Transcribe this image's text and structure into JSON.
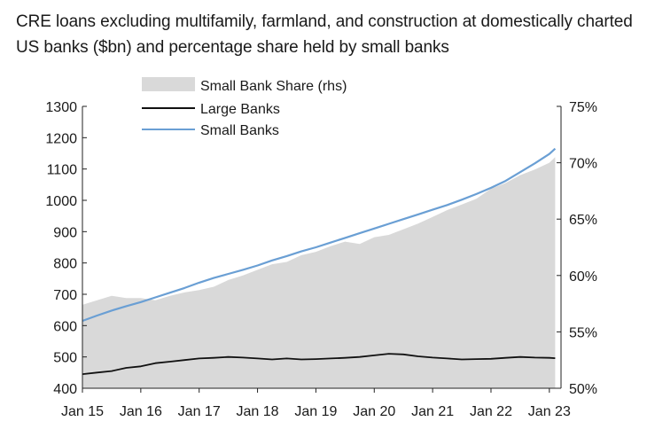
{
  "chart_data": {
    "type": "line",
    "title": "CRE loans excluding multifamily, farmland, and construction at domestically charted US banks ($bn) and percentage share held by small banks",
    "x_tick_labels": [
      "Jan 15",
      "Jan 16",
      "Jan 17",
      "Jan 18",
      "Jan 19",
      "Jan 20",
      "Jan 21",
      "Jan 22",
      "Jan 23"
    ],
    "y_left_ticks": [
      "400",
      "500",
      "600",
      "700",
      "800",
      "900",
      "1000",
      "1100",
      "1200",
      "1300"
    ],
    "y_right_ticks": [
      "50%",
      "55%",
      "60%",
      "65%",
      "70%",
      "75%"
    ],
    "ylim_left": [
      400,
      1300
    ],
    "ylim_right": [
      50,
      75
    ],
    "xlim": [
      2015,
      2023.2
    ],
    "legend_position": "top-left",
    "series": [
      {
        "name": "Small Bank Share (rhs)",
        "kind": "area",
        "axis": "right",
        "color": "#d9d9d9",
        "x": [
          2015.0,
          2015.25,
          2015.5,
          2015.75,
          2016.0,
          2016.25,
          2016.5,
          2016.75,
          2017.0,
          2017.25,
          2017.5,
          2017.75,
          2018.0,
          2018.25,
          2018.5,
          2018.75,
          2019.0,
          2019.25,
          2019.5,
          2019.75,
          2020.0,
          2020.25,
          2020.5,
          2020.75,
          2021.0,
          2021.25,
          2021.5,
          2021.75,
          2022.0,
          2022.25,
          2022.5,
          2022.75,
          2023.0,
          2023.1
        ],
        "values": [
          57.4,
          57.8,
          58.2,
          58.0,
          58.0,
          57.8,
          58.2,
          58.5,
          58.7,
          59.0,
          59.6,
          60.0,
          60.5,
          61.0,
          61.2,
          61.8,
          62.1,
          62.6,
          63.0,
          62.8,
          63.4,
          63.6,
          64.1,
          64.6,
          65.2,
          65.8,
          66.3,
          66.8,
          67.7,
          68.2,
          68.9,
          69.4,
          70.0,
          70.5
        ]
      },
      {
        "name": "Large Banks",
        "kind": "line",
        "axis": "left",
        "color": "#111111",
        "x": [
          2015.0,
          2015.25,
          2015.5,
          2015.75,
          2016.0,
          2016.25,
          2016.5,
          2016.75,
          2017.0,
          2017.25,
          2017.5,
          2017.75,
          2018.0,
          2018.25,
          2018.5,
          2018.75,
          2019.0,
          2019.25,
          2019.5,
          2019.75,
          2020.0,
          2020.25,
          2020.5,
          2020.75,
          2021.0,
          2021.25,
          2021.5,
          2021.75,
          2022.0,
          2022.25,
          2022.5,
          2022.75,
          2023.0,
          2023.1
        ],
        "values": [
          445,
          450,
          455,
          465,
          470,
          480,
          485,
          490,
          495,
          497,
          500,
          498,
          495,
          492,
          495,
          492,
          493,
          495,
          497,
          500,
          505,
          510,
          508,
          502,
          498,
          495,
          492,
          493,
          494,
          497,
          500,
          498,
          497,
          496
        ]
      },
      {
        "name": "Small Banks",
        "kind": "line",
        "axis": "left",
        "color": "#6a9fd4",
        "x": [
          2015.0,
          2015.25,
          2015.5,
          2015.75,
          2016.0,
          2016.25,
          2016.5,
          2016.75,
          2017.0,
          2017.25,
          2017.5,
          2017.75,
          2018.0,
          2018.25,
          2018.5,
          2018.75,
          2019.0,
          2019.25,
          2019.5,
          2019.75,
          2020.0,
          2020.25,
          2020.5,
          2020.75,
          2021.0,
          2021.25,
          2021.5,
          2021.75,
          2022.0,
          2022.25,
          2022.5,
          2022.75,
          2023.0,
          2023.1
        ],
        "values": [
          615,
          632,
          648,
          662,
          675,
          690,
          705,
          720,
          737,
          752,
          765,
          778,
          792,
          808,
          822,
          837,
          850,
          865,
          880,
          895,
          910,
          925,
          940,
          955,
          970,
          985,
          1002,
          1020,
          1040,
          1062,
          1090,
          1118,
          1148,
          1165
        ]
      }
    ]
  }
}
